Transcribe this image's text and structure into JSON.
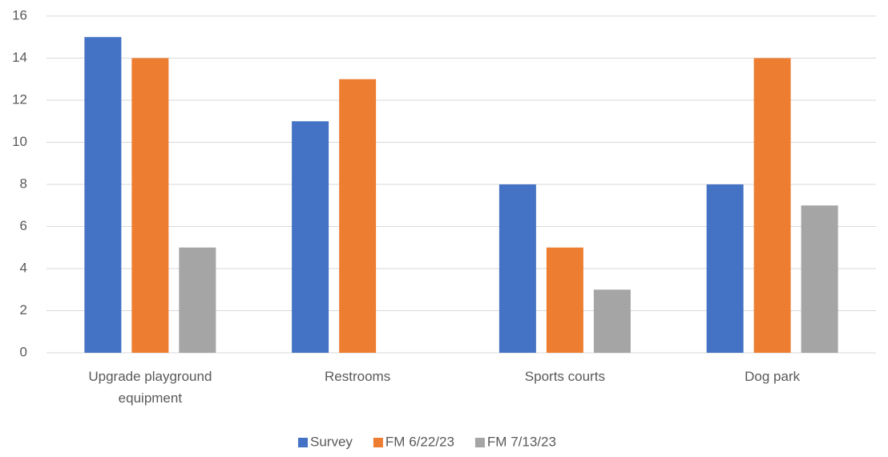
{
  "chart_data": {
    "type": "bar",
    "categories": [
      "Upgrade playground equipment",
      "Restrooms",
      "Sports courts",
      "Dog park"
    ],
    "series": [
      {
        "name": "Survey",
        "color": "#4472c4",
        "values": [
          15,
          11,
          8,
          8
        ]
      },
      {
        "name": "FM 6/22/23",
        "color": "#ed7d31",
        "values": [
          14,
          13,
          5,
          14
        ]
      },
      {
        "name": "FM 7/13/23",
        "color": "#a5a5a5",
        "values": [
          5,
          0,
          3,
          7
        ]
      }
    ],
    "ylim": [
      0,
      16
    ],
    "yticks": [
      0,
      2,
      4,
      6,
      8,
      10,
      12,
      14,
      16
    ],
    "grid": true,
    "legend": "bottom"
  }
}
